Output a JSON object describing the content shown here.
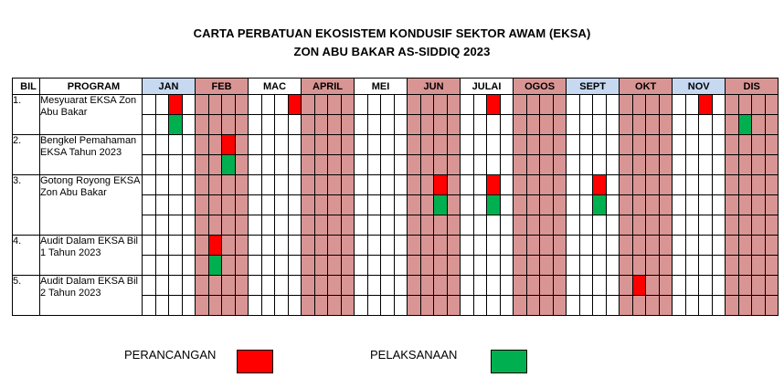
{
  "title": "CARTA PERBATUAN EKOSISTEM KONDUSIF SEKTOR AWAM (EKSA)",
  "subtitle": "ZON ABU BAKAR AS-SIDDIQ 2023",
  "headers": {
    "bil": "BIL",
    "program": "PROGRAM"
  },
  "months": [
    {
      "label": "JAN",
      "shade": "blue"
    },
    {
      "label": "FEB",
      "shade": "pink"
    },
    {
      "label": "MAC",
      "shade": "white"
    },
    {
      "label": "APRIL",
      "shade": "pink"
    },
    {
      "label": "MEI",
      "shade": "white"
    },
    {
      "label": "JUN",
      "shade": "pink"
    },
    {
      "label": "JULAI",
      "shade": "white"
    },
    {
      "label": "OGOS",
      "shade": "pink"
    },
    {
      "label": "SEPT",
      "shade": "blue"
    },
    {
      "label": "OKT",
      "shade": "pink"
    },
    {
      "label": "NOV",
      "shade": "blue"
    },
    {
      "label": "DIS",
      "shade": "pink"
    }
  ],
  "programs": [
    {
      "bil": "1.",
      "name": "Mesyuarat EKSA Zon Abu Bakar",
      "rows": 2,
      "plan": [
        {
          "row": 0,
          "week": 2
        },
        {
          "row": 0,
          "week": 11
        },
        {
          "row": 0,
          "week": 26
        },
        {
          "row": 0,
          "week": 42
        }
      ],
      "exec": [
        {
          "row": 1,
          "week": 2
        },
        {
          "row": 1,
          "week": 45
        }
      ]
    },
    {
      "bil": "2.",
      "name": "Bengkel Pemahaman EKSA Tahun 2023",
      "rows": 2,
      "plan": [
        {
          "row": 0,
          "week": 6
        }
      ],
      "exec": [
        {
          "row": 1,
          "week": 6
        }
      ]
    },
    {
      "bil": "3.",
      "name": "Gotong Royong EKSA Zon Abu Bakar",
      "rows": 3,
      "plan": [
        {
          "row": 0,
          "week": 22
        },
        {
          "row": 0,
          "week": 26
        },
        {
          "row": 0,
          "week": 34
        }
      ],
      "exec": [
        {
          "row": 1,
          "week": 22
        },
        {
          "row": 1,
          "week": 26
        },
        {
          "row": 1,
          "week": 34
        }
      ]
    },
    {
      "bil": "4.",
      "name": "Audit Dalam EKSA Bil 1 Tahun 2023",
      "rows": 2,
      "plan": [
        {
          "row": 0,
          "week": 5
        }
      ],
      "exec": [
        {
          "row": 1,
          "week": 5
        }
      ]
    },
    {
      "bil": "5.",
      "name": "Audit Dalam EKSA Bil 2 Tahun 2023",
      "rows": 2,
      "plan": [
        {
          "row": 0,
          "week": 37
        }
      ],
      "exec": []
    }
  ],
  "legend": {
    "plan_label": "PERANCANGAN",
    "exec_label": "PELAKSANAAN"
  },
  "colors": {
    "plan": "#ff0000",
    "exec": "#00b050",
    "month_pink": "#d99594",
    "month_blue": "#c6d9f1"
  }
}
